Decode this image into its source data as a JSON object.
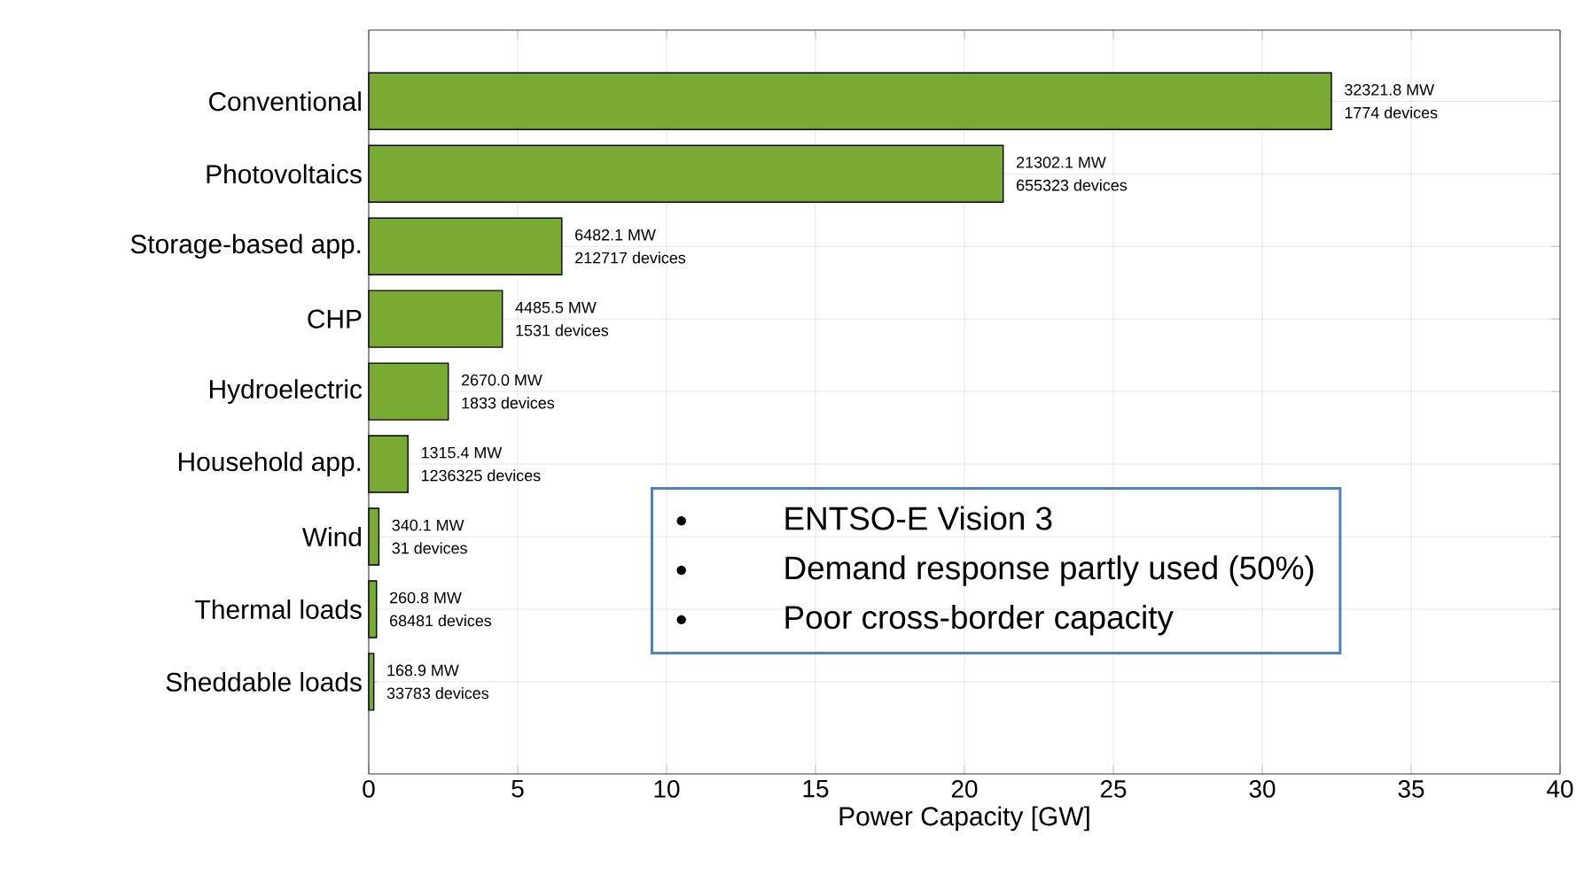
{
  "chart_data": {
    "type": "bar",
    "orientation": "horizontal",
    "xlabel": "Power Capacity [GW]",
    "categories": [
      "Conventional",
      "Photovoltaics",
      "Storage-based app.",
      "CHP",
      "Hydroelectric",
      "Household app.",
      "Wind",
      "Thermal loads",
      "Sheddable loads"
    ],
    "values": [
      32.3218,
      21.3021,
      6.4821,
      4.4855,
      2.67,
      1.3154,
      0.3401,
      0.2608,
      0.1689
    ],
    "color": "#79ab34",
    "value_labels": [
      [
        "32321.8 MW",
        "1774 devices"
      ],
      [
        "21302.1 MW",
        "655323 devices"
      ],
      [
        "6482.1 MW",
        "212717 devices"
      ],
      [
        "4485.5 MW",
        "1531 devices"
      ],
      [
        "2670.0 MW",
        "1833 devices"
      ],
      [
        "1315.4 MW",
        "1236325 devices"
      ],
      [
        "340.1 MW",
        "31 devices"
      ],
      [
        "260.8 MW",
        "68481 devices"
      ],
      [
        "168.9 MW",
        "33783 devices"
      ]
    ],
    "xlim": [
      0,
      40
    ],
    "xticks": [
      0,
      5,
      10,
      15,
      20,
      25,
      30,
      35,
      40
    ],
    "grid": true,
    "annotations": [
      "ENTSO-E Vision 3",
      "Demand response partly used (50%)",
      "Poor cross-border capacity"
    ]
  }
}
